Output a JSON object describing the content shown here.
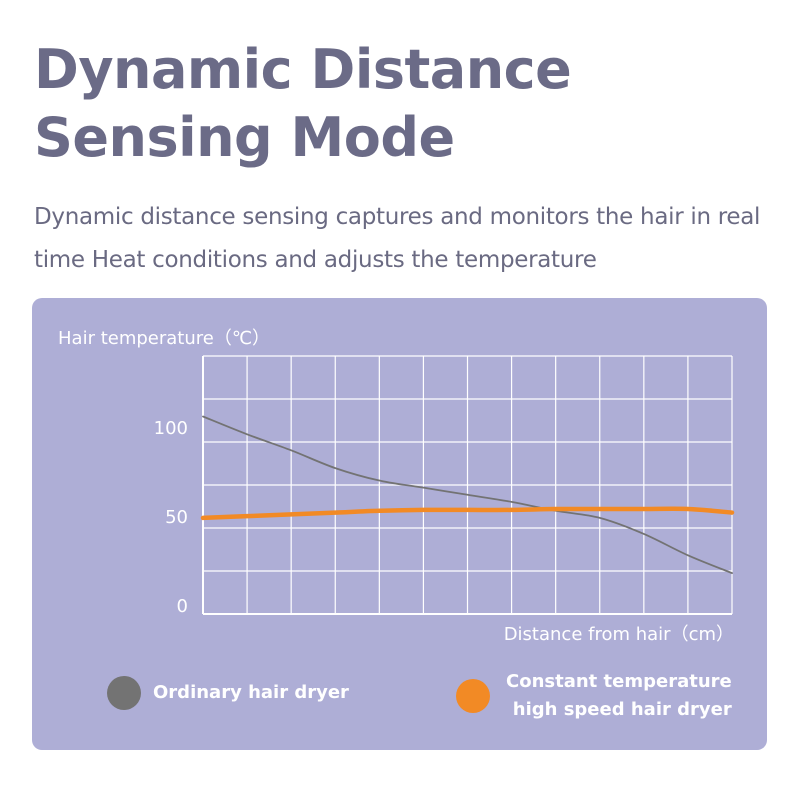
{
  "header": {
    "title": "Dynamic Distance Sensing Mode",
    "subtitle": "Dynamic distance sensing captures and monitors the hair in real time Heat conditions and adjusts the temperature"
  },
  "colors": {
    "panel_background": "#aeaed6",
    "ordinary_line": "#737373",
    "constant_line": "#f28a25",
    "grid": "#ffffff",
    "title_text": "#6b6b87"
  },
  "chart_data": {
    "type": "line",
    "ylabel": "Hair temperature（℃）",
    "xlabel": "Distance from hair（cm）",
    "yticks": [
      "0",
      "50",
      "100"
    ],
    "ylim": [
      0,
      145
    ],
    "xlim": [
      0,
      12
    ],
    "grid": true,
    "legend_placement": "bottom",
    "series": [
      {
        "name": "Ordinary hair dryer",
        "color": "#737373",
        "x": [
          0,
          1,
          2,
          3,
          4,
          5,
          6,
          7,
          8,
          9,
          10,
          11,
          12
        ],
        "values": [
          111,
          101,
          92,
          82,
          75,
          71,
          67,
          63,
          58,
          54,
          45,
          33,
          23
        ]
      },
      {
        "name": "Constant temperature high speed hair dryer",
        "color": "#f28a25",
        "x": [
          0,
          1,
          2,
          3,
          4,
          5,
          6,
          7,
          8,
          9,
          10,
          11,
          12
        ],
        "values": [
          54,
          55,
          56,
          57,
          58,
          58.5,
          58.5,
          58.5,
          59,
          59,
          59,
          59,
          57
        ]
      }
    ]
  },
  "legend": {
    "ordinary_label": "Ordinary hair dryer",
    "constant_label_line1": "Constant temperature",
    "constant_label_line2": "high speed hair dryer"
  }
}
